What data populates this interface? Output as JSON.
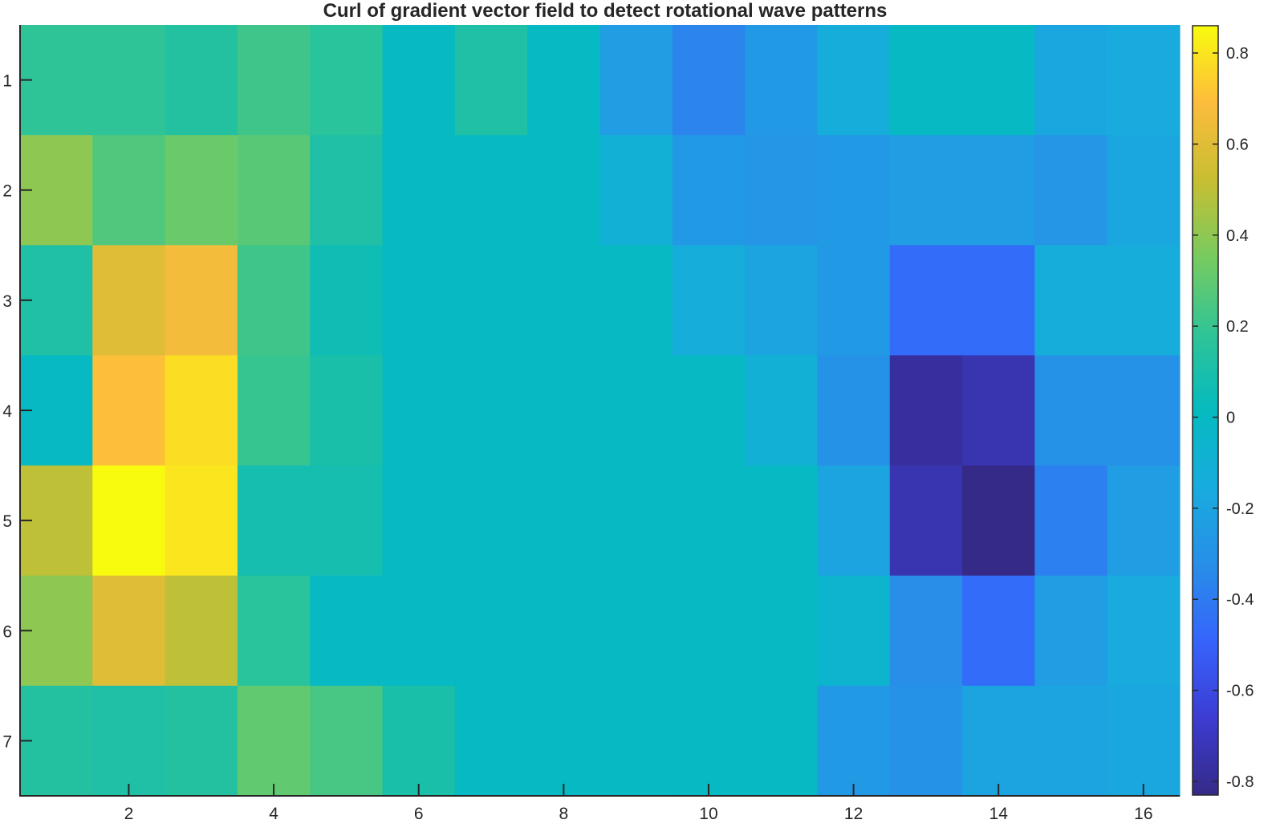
{
  "chart_data": {
    "type": "heatmap",
    "title": "Curl of gradient vector field to detect rotational wave patterns",
    "xlabel": "",
    "ylabel": "",
    "x_ticks": [
      2,
      4,
      6,
      8,
      10,
      12,
      14,
      16
    ],
    "y_ticks": [
      1,
      2,
      3,
      4,
      5,
      6,
      7
    ],
    "x_range": [
      0.5,
      16.5
    ],
    "y_range": [
      0.5,
      7.5
    ],
    "y_direction": "reverse",
    "colormap": "parula",
    "clim": [
      -0.83,
      0.86
    ],
    "colorbar": {
      "location": "right",
      "ticks": [
        0.8,
        0.6,
        0.4,
        0.2,
        0,
        -0.2,
        -0.4,
        -0.6,
        -0.8
      ],
      "tick_labels": [
        "0.8",
        "0.6",
        "0.4",
        "0.2",
        "0",
        "-0.2",
        "-0.4",
        "-0.6",
        "-0.8"
      ]
    },
    "values": [
      [
        0.18,
        0.18,
        0.14,
        0.22,
        0.16,
        0.0,
        0.12,
        0.0,
        -0.24,
        -0.36,
        -0.26,
        -0.14,
        0.0,
        0.0,
        -0.18,
        -0.16
      ],
      [
        0.4,
        0.26,
        0.32,
        0.28,
        0.12,
        0.0,
        0.0,
        0.0,
        -0.1,
        -0.26,
        -0.28,
        -0.26,
        -0.24,
        -0.24,
        -0.28,
        -0.18
      ],
      [
        0.12,
        0.6,
        0.66,
        0.22,
        0.06,
        0.0,
        0.0,
        0.0,
        0.0,
        -0.14,
        -0.2,
        -0.26,
        -0.46,
        -0.46,
        -0.14,
        -0.14
      ],
      [
        0.0,
        0.7,
        0.78,
        0.2,
        0.1,
        0.0,
        0.0,
        0.0,
        0.0,
        0.0,
        -0.1,
        -0.3,
        -0.78,
        -0.74,
        -0.3,
        -0.3
      ],
      [
        0.5,
        0.86,
        0.8,
        0.08,
        0.08,
        0.0,
        0.0,
        0.0,
        0.0,
        0.0,
        0.0,
        -0.2,
        -0.74,
        -0.83,
        -0.38,
        -0.24
      ],
      [
        0.4,
        0.6,
        0.5,
        0.16,
        0.0,
        0.0,
        0.0,
        0.0,
        0.0,
        0.0,
        0.0,
        -0.06,
        -0.32,
        -0.46,
        -0.24,
        -0.16
      ],
      [
        0.14,
        0.12,
        0.14,
        0.3,
        0.24,
        0.1,
        0.0,
        0.0,
        0.0,
        0.0,
        0.0,
        -0.26,
        -0.3,
        -0.2,
        -0.2,
        -0.18
      ]
    ]
  }
}
